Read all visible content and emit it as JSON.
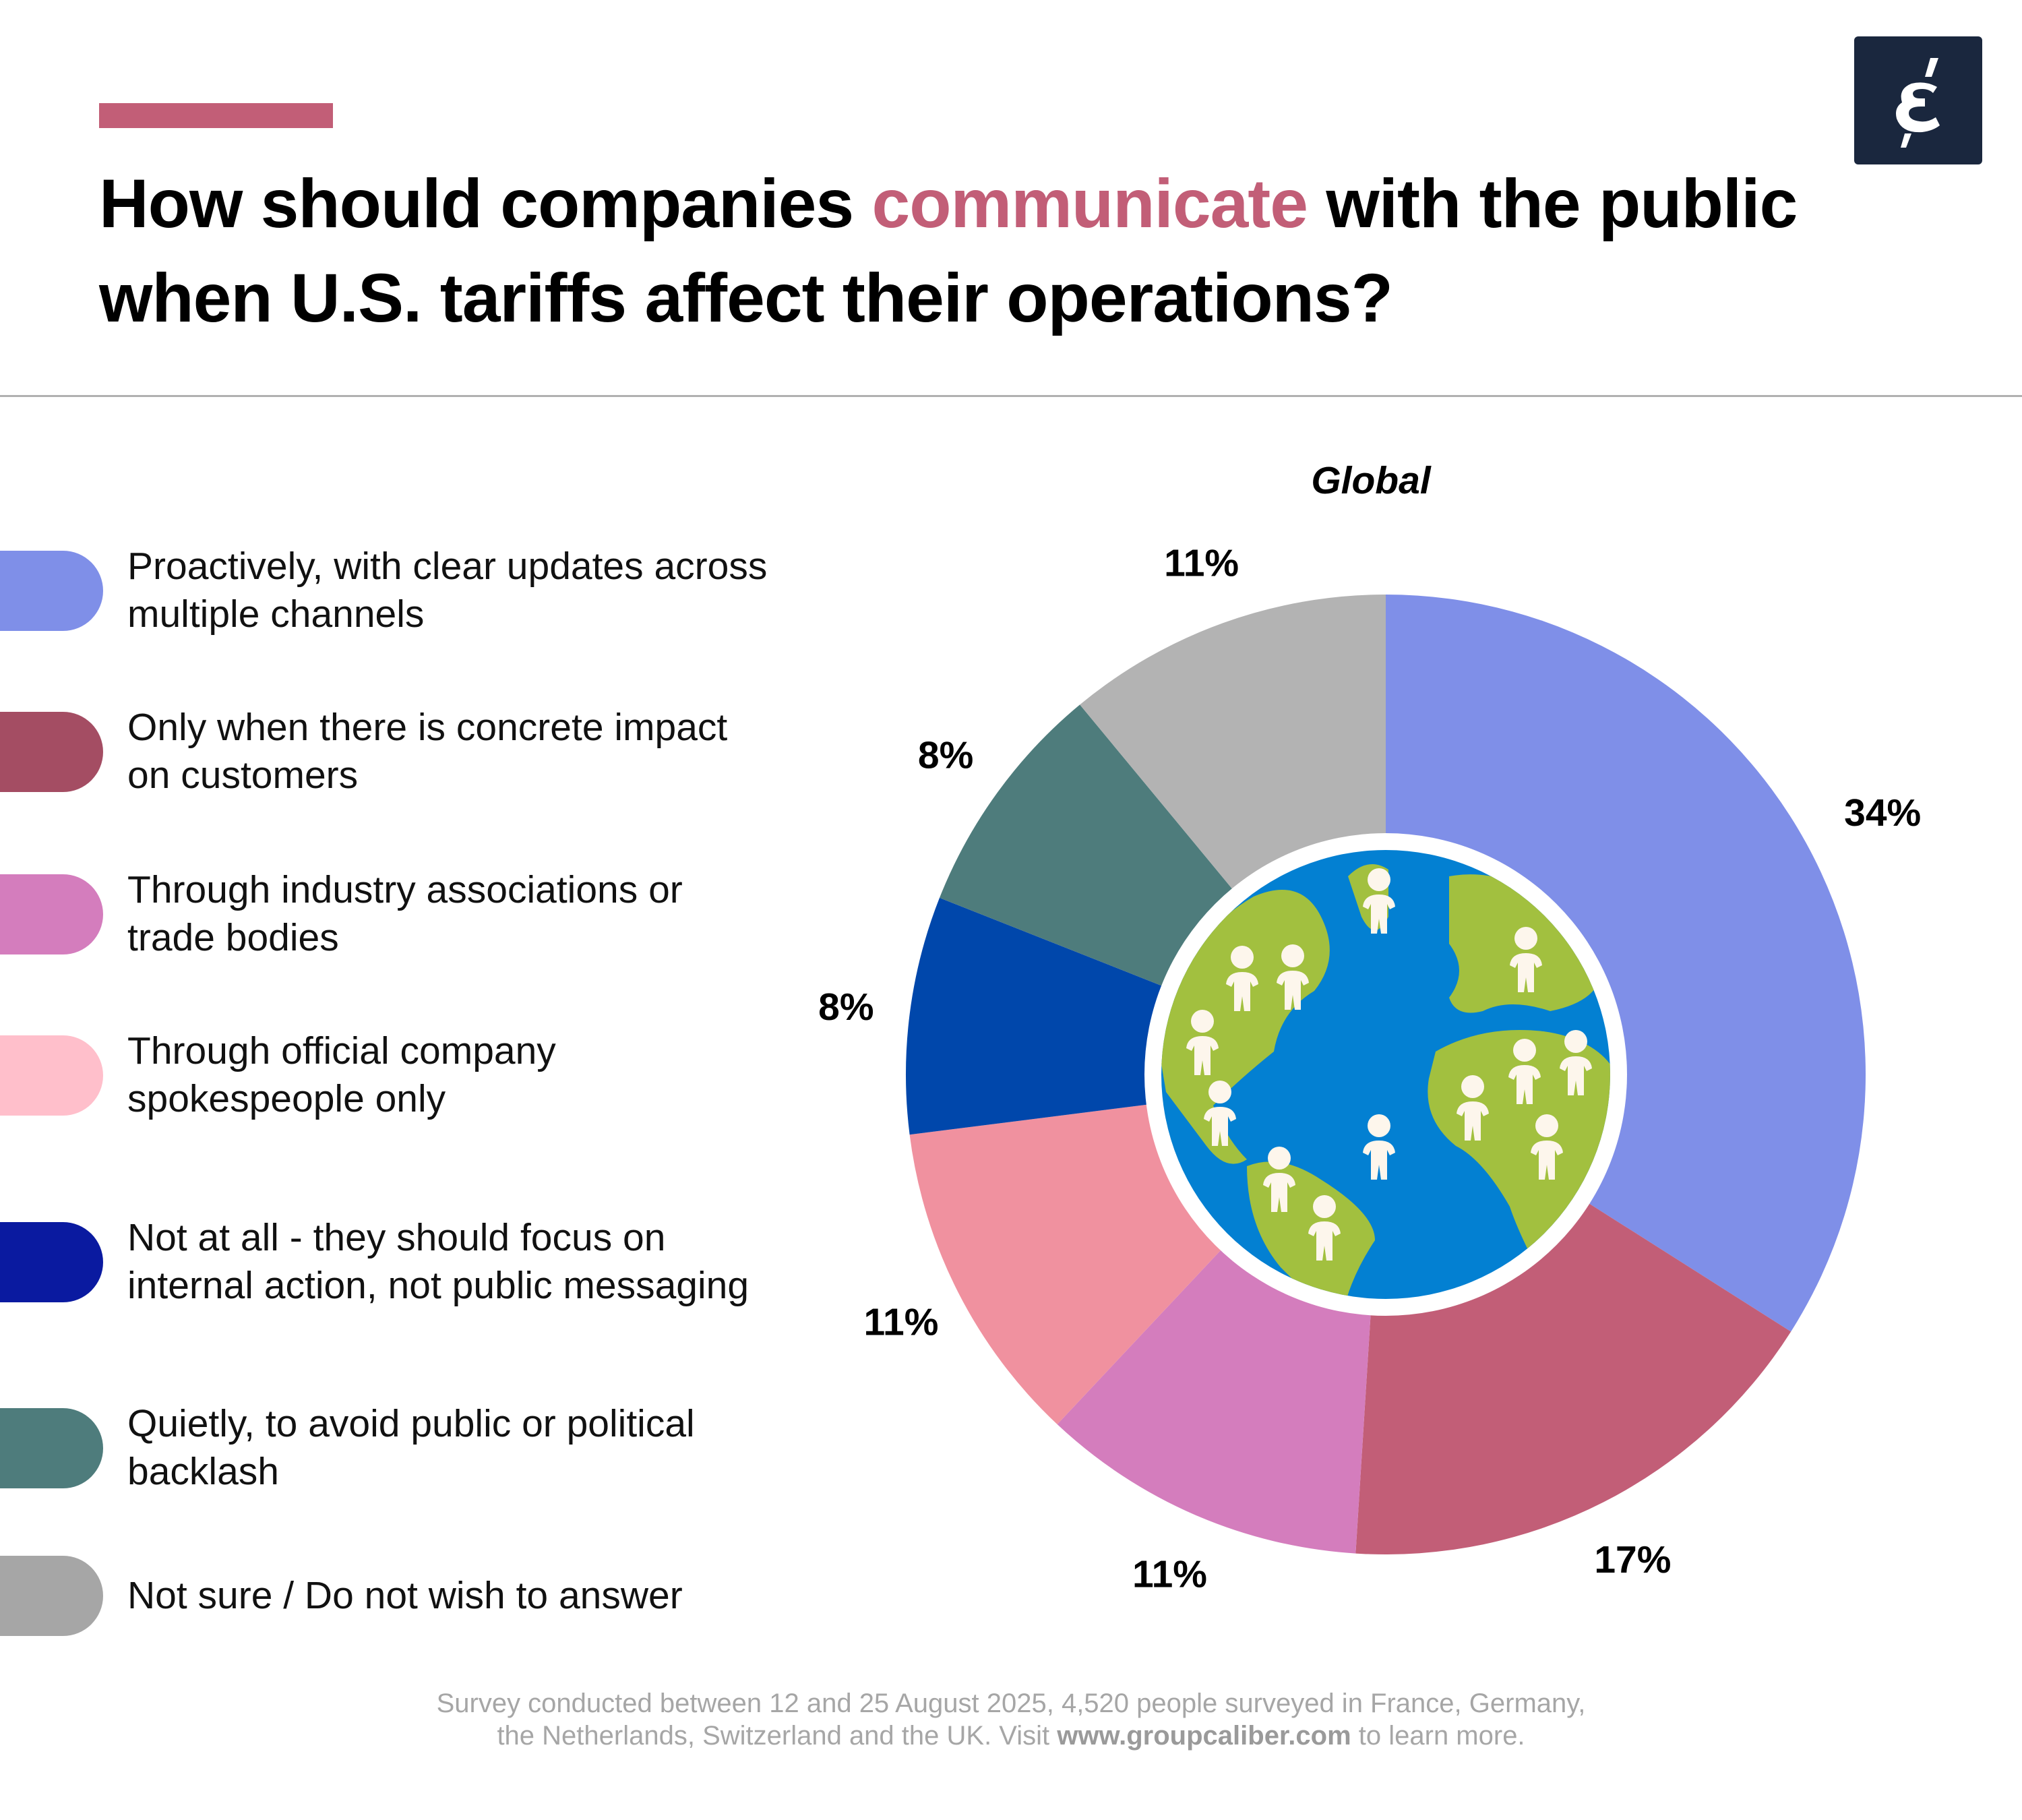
{
  "header": {
    "title_part1": "How should companies ",
    "title_highlight": "communicate",
    "title_part2": " with the public when U.S. tariffs affect their operations?",
    "accent_color": "#c25e77",
    "logo_text": "ɛ́"
  },
  "legend": [
    {
      "label": "Proactively, with clear updates across multiple channels",
      "color": "#7f8fe8"
    },
    {
      "label": "Only when there is concrete impact on customers",
      "color": "#a44d63"
    },
    {
      "label": "Through industry associations or trade bodies",
      "color": "#d47dbd"
    },
    {
      "label": "Through official company spokespeople only",
      "color": "#ffbfcb"
    },
    {
      "label": "Not at all - they should focus on internal action, not public messaging",
      "color": "#0a1aa0"
    },
    {
      "label": "Quietly, to avoid public or political backlash",
      "color": "#4e7c7c"
    },
    {
      "label": "Not sure / Do not wish to answer",
      "color": "#a6a6a6"
    }
  ],
  "chart_data": {
    "type": "pie",
    "variant": "donut",
    "title": "Global",
    "categories": [
      "Proactively, with clear updates across multiple channels",
      "Only when there is concrete impact on customers",
      "Through industry associations or trade bodies",
      "Through official company spokespeople only",
      "Not at all - they should focus on internal action, not public messaging",
      "Quietly, to avoid public or political backlash",
      "Not sure / Do not wish to answer"
    ],
    "values": [
      34,
      17,
      11,
      11,
      8,
      8,
      11
    ],
    "labels": [
      "34%",
      "17%",
      "11%",
      "11%",
      "8%",
      "8%",
      "11%"
    ],
    "colors": [
      "#7f8fe8",
      "#c25e77",
      "#d47dbd",
      "#f0919f",
      "#0047ab",
      "#4e7c7c",
      "#b3b3b3"
    ],
    "unit": "%",
    "start": "top",
    "direction": "clockwise",
    "legend_position": "left",
    "center_icon": "globe-with-people-icon"
  },
  "footer": {
    "line1": "Survey conducted between 12 and 25 August 2025, 4,520 people surveyed in France, Germany,",
    "line2_pre": "the Netherlands, Switzerland and the UK. Visit ",
    "link": "www.groupcaliber.com",
    "line2_post": " to learn more."
  }
}
